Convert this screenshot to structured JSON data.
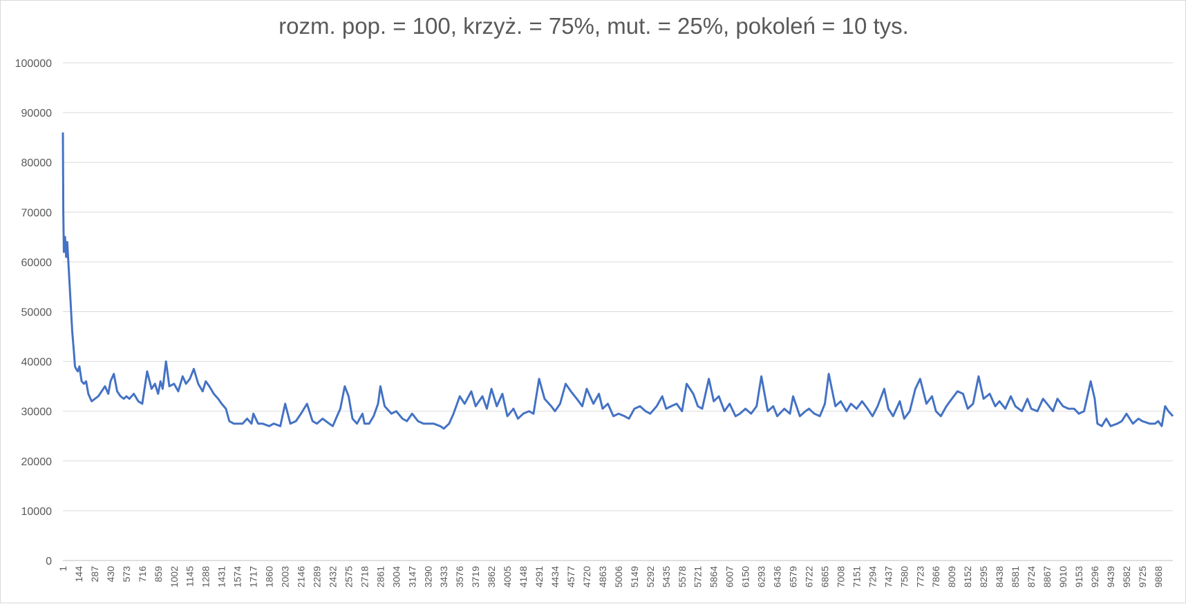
{
  "chart_data": {
    "type": "line",
    "title": "rozm. pop. = 100, krzyż. =  75%, mut. = 25%, pokoleń = 10 tys.",
    "xlabel": "",
    "ylabel": "",
    "ylim": [
      0,
      100000
    ],
    "xlim": [
      1,
      10000
    ],
    "grid": true,
    "legend": "none",
    "y_ticks": [
      0,
      10000,
      20000,
      30000,
      40000,
      50000,
      60000,
      70000,
      80000,
      90000,
      100000
    ],
    "x_tick_labels": [
      "1",
      "144",
      "287",
      "430",
      "573",
      "716",
      "859",
      "1002",
      "1145",
      "1288",
      "1431",
      "1574",
      "1717",
      "1860",
      "2003",
      "2146",
      "2289",
      "2432",
      "2575",
      "2718",
      "2861",
      "3004",
      "3147",
      "3290",
      "3433",
      "3576",
      "3719",
      "3862",
      "4005",
      "4148",
      "4291",
      "4434",
      "4577",
      "4720",
      "4863",
      "5006",
      "5149",
      "5292",
      "5435",
      "5578",
      "5721",
      "5864",
      "6007",
      "6150",
      "6293",
      "6436",
      "6579",
      "6722",
      "6865",
      "7008",
      "7151",
      "7294",
      "7437",
      "7580",
      "7723",
      "7866",
      "8009",
      "8152",
      "8295",
      "8438",
      "8581",
      "8724",
      "8867",
      "9010",
      "9153",
      "9296",
      "9439",
      "9582",
      "9725",
      "9868"
    ],
    "series": [
      {
        "color": "#4472c4",
        "x": [
          1,
          5,
          10,
          20,
          30,
          40,
          55,
          70,
          85,
          100,
          110,
          120,
          135,
          150,
          170,
          190,
          210,
          230,
          260,
          290,
          320,
          350,
          380,
          410,
          430,
          460,
          490,
          520,
          550,
          573,
          600,
          640,
          680,
          716,
          760,
          800,
          830,
          859,
          880,
          900,
          930,
          960,
          1002,
          1040,
          1080,
          1110,
          1145,
          1180,
          1220,
          1260,
          1288,
          1320,
          1360,
          1400,
          1431,
          1470,
          1500,
          1540,
          1574,
          1620,
          1660,
          1700,
          1717,
          1760,
          1800,
          1860,
          1900,
          1960,
          2003,
          2050,
          2100,
          2146,
          2200,
          2250,
          2289,
          2340,
          2400,
          2432,
          2470,
          2500,
          2540,
          2575,
          2610,
          2650,
          2700,
          2718,
          2760,
          2800,
          2840,
          2861,
          2900,
          2960,
          3004,
          3060,
          3100,
          3147,
          3200,
          3250,
          3290,
          3340,
          3400,
          3433,
          3480,
          3520,
          3576,
          3620,
          3680,
          3719,
          3780,
          3820,
          3862,
          3910,
          3960,
          4005,
          4060,
          4100,
          4148,
          4200,
          4240,
          4291,
          4340,
          4400,
          4434,
          4480,
          4530,
          4577,
          4630,
          4680,
          4720,
          4780,
          4830,
          4863,
          4910,
          4960,
          5006,
          5060,
          5100,
          5149,
          5200,
          5250,
          5292,
          5350,
          5400,
          5435,
          5480,
          5530,
          5578,
          5620,
          5680,
          5721,
          5760,
          5820,
          5864,
          5910,
          5960,
          6007,
          6060,
          6100,
          6150,
          6200,
          6250,
          6293,
          6350,
          6400,
          6436,
          6500,
          6550,
          6579,
          6640,
          6690,
          6722,
          6770,
          6820,
          6865,
          6900,
          6960,
          7008,
          7060,
          7100,
          7151,
          7200,
          7250,
          7294,
          7340,
          7400,
          7437,
          7480,
          7540,
          7580,
          7630,
          7680,
          7723,
          7780,
          7830,
          7866,
          7910,
          7960,
          8009,
          8060,
          8110,
          8152,
          8200,
          8250,
          8295,
          8350,
          8400,
          8438,
          8490,
          8540,
          8581,
          8640,
          8690,
          8724,
          8780,
          8830,
          8867,
          8920,
          8960,
          9010,
          9060,
          9110,
          9153,
          9200,
          9260,
          9296,
          9320,
          9360,
          9400,
          9439,
          9500,
          9540,
          9582,
          9640,
          9690,
          9725,
          9790,
          9840,
          9868,
          9900,
          9930,
          9960,
          10000
        ],
        "y": [
          86000,
          70000,
          62000,
          65000,
          61000,
          64000,
          58000,
          52000,
          46000,
          42000,
          39000,
          38500,
          38000,
          39000,
          36000,
          35500,
          36000,
          33500,
          32000,
          32500,
          33000,
          34000,
          35000,
          33500,
          36000,
          37500,
          34000,
          33000,
          32500,
          33000,
          32500,
          33500,
          32000,
          31500,
          38000,
          34500,
          35500,
          33500,
          36000,
          34500,
          40000,
          35000,
          35500,
          34000,
          37000,
          35500,
          36500,
          38500,
          35500,
          34000,
          36000,
          35000,
          33500,
          32500,
          31500,
          30500,
          28000,
          27500,
          27500,
          27500,
          28500,
          27500,
          29500,
          27500,
          27500,
          27000,
          27500,
          27000,
          31500,
          27500,
          28000,
          29500,
          31500,
          28000,
          27500,
          28500,
          27500,
          27000,
          29000,
          30500,
          35000,
          33000,
          28500,
          27500,
          29500,
          27500,
          27500,
          29000,
          31500,
          35000,
          31000,
          29500,
          30000,
          28500,
          28000,
          29500,
          28000,
          27500,
          27500,
          27500,
          27000,
          26500,
          27500,
          29500,
          33000,
          31500,
          34000,
          31000,
          33000,
          30500,
          34500,
          31000,
          33500,
          29000,
          30500,
          28500,
          29500,
          30000,
          29500,
          36500,
          32500,
          31000,
          30000,
          31500,
          35500,
          34000,
          32500,
          31000,
          34500,
          31500,
          33500,
          30500,
          31500,
          29000,
          29500,
          29000,
          28500,
          30500,
          31000,
          30000,
          29500,
          31000,
          33000,
          30500,
          31000,
          31500,
          30000,
          35500,
          33500,
          31000,
          30500,
          36500,
          32000,
          33000,
          30000,
          31500,
          29000,
          29500,
          30500,
          29500,
          31000,
          37000,
          30000,
          31000,
          29000,
          30500,
          29500,
          33000,
          29000,
          30000,
          30500,
          29500,
          29000,
          31500,
          37500,
          31000,
          32000,
          30000,
          31500,
          30500,
          32000,
          30500,
          29000,
          31000,
          34500,
          30500,
          29000,
          32000,
          28500,
          30000,
          34500,
          36500,
          31500,
          33000,
          30000,
          29000,
          31000,
          32500,
          34000,
          33500,
          30500,
          31500,
          37000,
          32500,
          33500,
          31000,
          32000,
          30500,
          33000,
          31000,
          30000,
          32500,
          30500,
          30000,
          32500,
          31500,
          30000,
          32500,
          31000,
          30500,
          30500,
          29500,
          30000,
          36000,
          32500,
          27500,
          27000,
          28500,
          27000,
          27500,
          28000,
          29500,
          27500,
          28500,
          28000,
          27500,
          27500,
          28000,
          27000,
          31000,
          30000,
          29000
        ]
      }
    ]
  }
}
